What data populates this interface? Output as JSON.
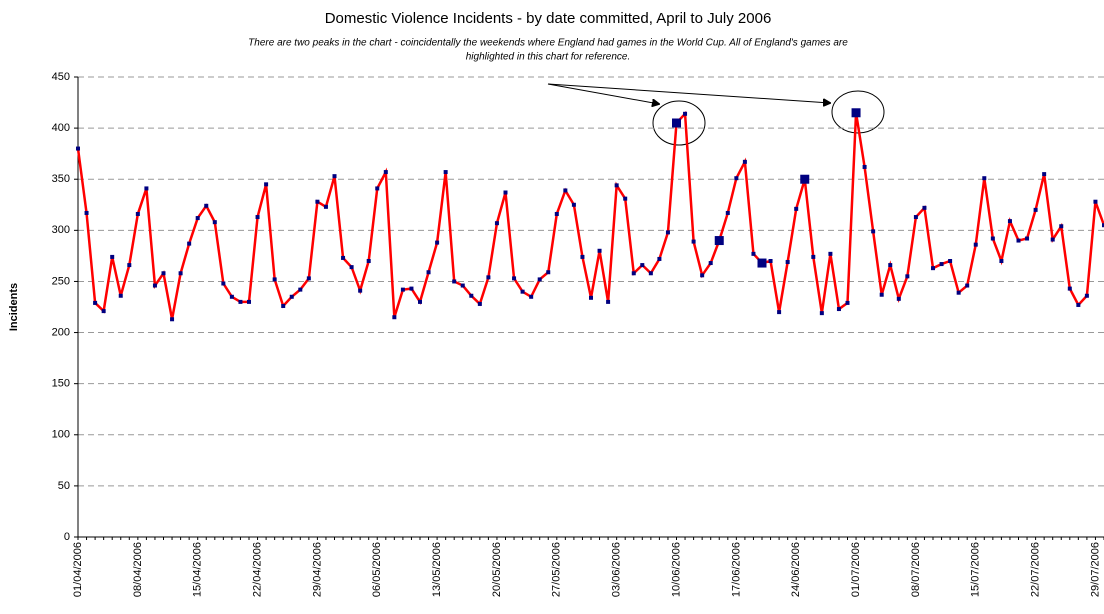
{
  "chart_data": {
    "type": "line",
    "title": "Domestic Violence Incidents - by date committed, April to July 2006",
    "subtitle": [
      "There are two peaks in the chart - coincidentally the weekends where England had games in the World Cup. All of England's games are",
      "highlighted in this chart for reference."
    ],
    "ylabel": "Incidents",
    "categories": [
      "01/04/2006",
      null,
      null,
      null,
      null,
      null,
      null,
      "08/04/2006",
      null,
      null,
      null,
      null,
      null,
      null,
      "15/04/2006",
      null,
      null,
      null,
      null,
      null,
      null,
      "22/04/2006",
      null,
      null,
      null,
      null,
      null,
      null,
      "29/04/2006",
      null,
      null,
      null,
      null,
      null,
      null,
      "06/05/2006",
      null,
      null,
      null,
      null,
      null,
      null,
      "13/05/2006",
      null,
      null,
      null,
      null,
      null,
      null,
      "20/05/2006",
      null,
      null,
      null,
      null,
      null,
      null,
      "27/05/2006",
      null,
      null,
      null,
      null,
      null,
      null,
      "03/06/2006",
      null,
      null,
      null,
      null,
      null,
      null,
      "10/06/2006",
      null,
      null,
      null,
      null,
      null,
      null,
      "17/06/2006",
      null,
      null,
      null,
      null,
      null,
      null,
      "24/06/2006",
      null,
      null,
      null,
      null,
      null,
      null,
      "01/07/2006",
      null,
      null,
      null,
      null,
      null,
      null,
      "08/07/2006",
      null,
      null,
      null,
      null,
      null,
      null,
      "15/07/2006",
      null,
      null,
      null,
      null,
      null,
      null,
      "22/07/2006",
      null,
      null,
      null,
      null,
      null,
      null,
      "29/07/2006",
      null
    ],
    "series": [
      {
        "color": "#ff0000",
        "marker_color": "#000080",
        "values": [
          380,
          317,
          229,
          221,
          274,
          236,
          266,
          316,
          341,
          246,
          258,
          213,
          258,
          287,
          312,
          324,
          308,
          248,
          235,
          230,
          230,
          313,
          345,
          252,
          226,
          235,
          242,
          253,
          328,
          323,
          353,
          273,
          264,
          241,
          270,
          341,
          357,
          215,
          242,
          243,
          230,
          259,
          288,
          357,
          250,
          246,
          236,
          228,
          254,
          307,
          337,
          253,
          240,
          235,
          252,
          259,
          316,
          339,
          325,
          274,
          234,
          280,
          230,
          344,
          331,
          258,
          266,
          258,
          272,
          298,
          405,
          414,
          289,
          256,
          268,
          290,
          317,
          351,
          367,
          277,
          268,
          270,
          220,
          269,
          321,
          350,
          274,
          219,
          277,
          223,
          229,
          415,
          362,
          299,
          237,
          266,
          233,
          255,
          313,
          322,
          263,
          267,
          270,
          239,
          246,
          286,
          351,
          292,
          270,
          309,
          290,
          292,
          320,
          355,
          291,
          304,
          243,
          227,
          236,
          328,
          305
        ]
      }
    ],
    "highlighted": [
      70,
      75,
      80,
      85,
      91
    ],
    "ylim": [
      0,
      450
    ],
    "yticks": [
      0,
      50,
      100,
      150,
      200,
      250,
      300,
      350,
      400,
      450
    ],
    "grid": true
  }
}
